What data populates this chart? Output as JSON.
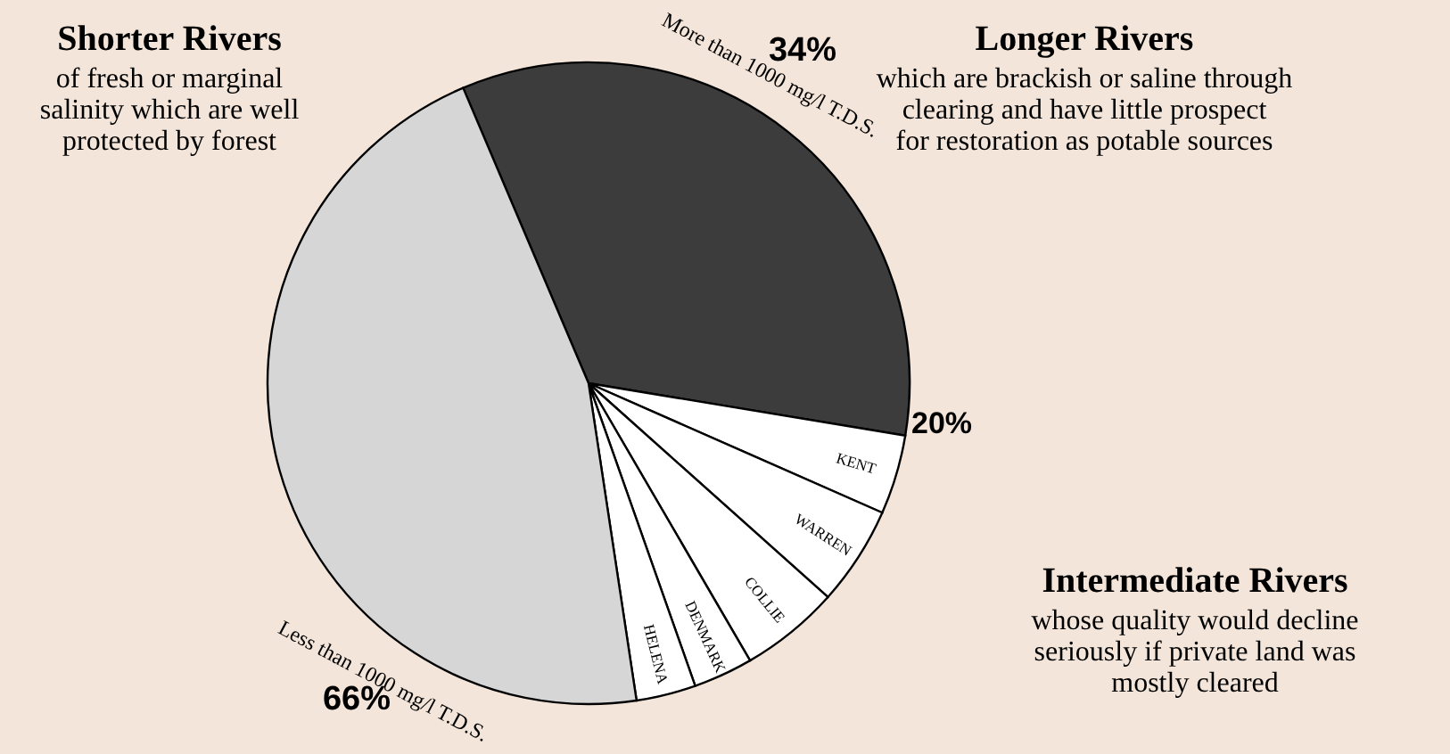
{
  "chart_data": {
    "type": "pie",
    "categories": [
      "Longer Rivers",
      "KENT",
      "WARREN",
      "COLLIE",
      "DENMARK",
      "HELENA",
      "Shorter Rivers"
    ],
    "values": [
      34,
      4,
      5,
      5,
      3,
      3,
      46
    ],
    "colors": [
      "#3c3c3c",
      "#ffffff",
      "#ffffff",
      "#ffffff",
      "#ffffff",
      "#ffffff",
      "#d6d6d6"
    ],
    "annotations": [
      "of fresh or marginal salinity which are well protected by forest",
      "which are brackish or saline through clearing and have little prospect for restoration as potable sources",
      "Intermediate Rivers",
      "whose quality would decline seriously if private land was mostly cleared",
      "More than 1000 mg/l T.D.S.",
      "34%",
      "Less than 1000 mg/l T.D.S.",
      "66%",
      "20%"
    ]
  }
}
